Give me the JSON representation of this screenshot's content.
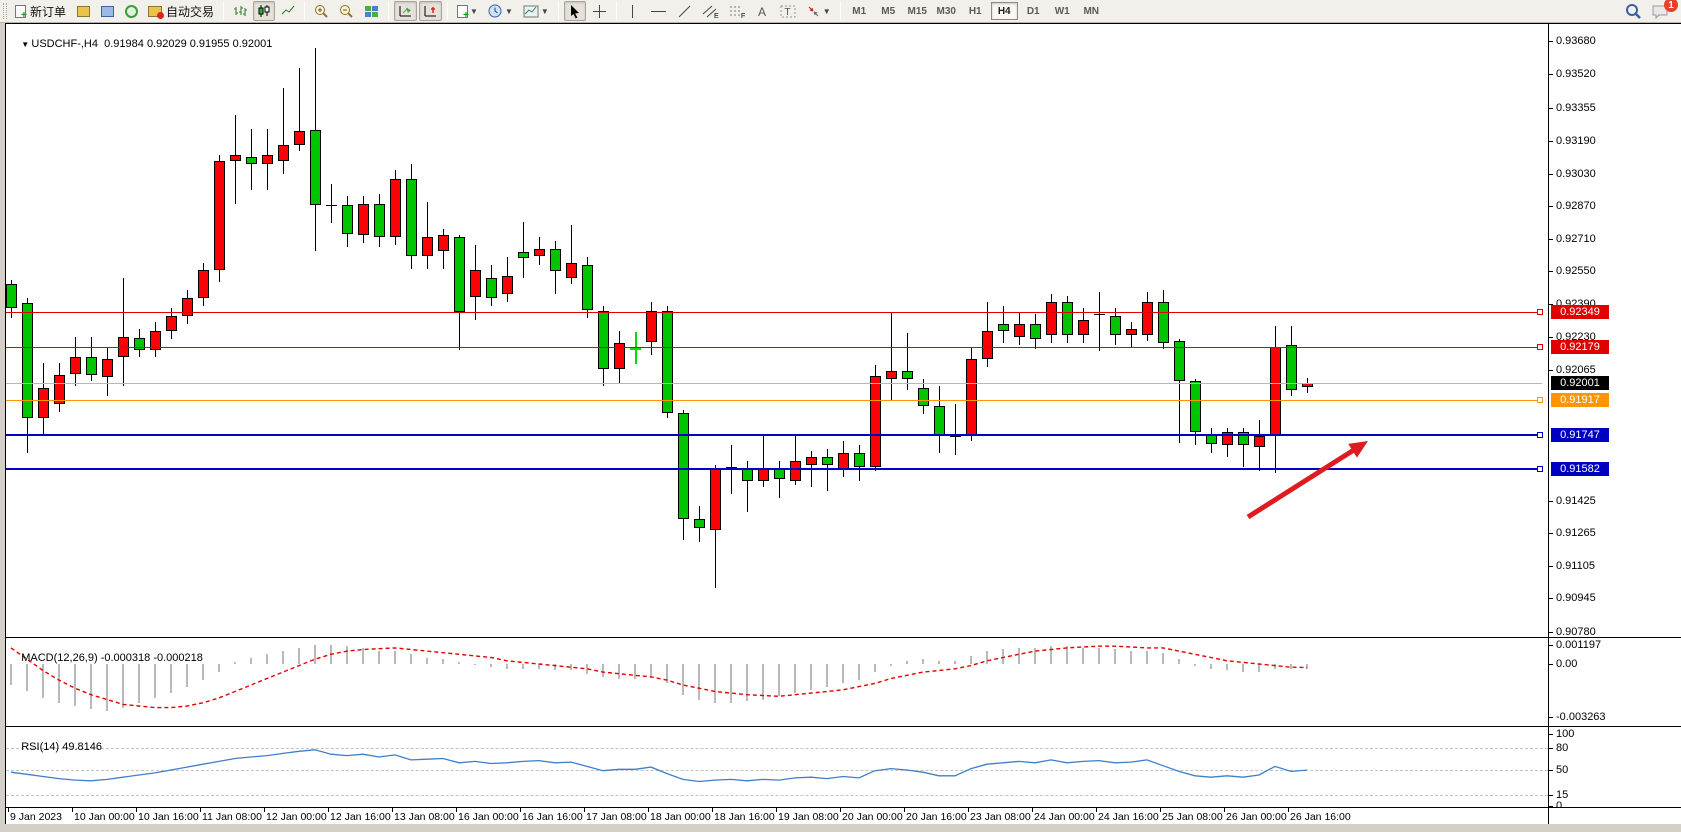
{
  "toolbar": {
    "new_order_label": "新订单",
    "auto_trading_label": "自动交易",
    "timeframes": [
      {
        "label": "M1",
        "active": false
      },
      {
        "label": "M5",
        "active": false
      },
      {
        "label": "M15",
        "active": false
      },
      {
        "label": "M30",
        "active": false
      },
      {
        "label": "H1",
        "active": false
      },
      {
        "label": "H4",
        "active": true
      },
      {
        "label": "D1",
        "active": false
      },
      {
        "label": "W1",
        "active": false
      },
      {
        "label": "MN",
        "active": false
      }
    ],
    "notification_count": "1"
  },
  "chart": {
    "title_symbol": "USDCHF-,H4",
    "title_ohlc": "0.91984 0.92029 0.91955 0.92001"
  },
  "chart_data": {
    "type": "candlestick",
    "symbol": "USDCHF-",
    "timeframe": "H4",
    "ohlc_display": {
      "open": "0.91984",
      "high": "0.92029",
      "low": "0.91955",
      "close": "0.92001"
    },
    "colors": {
      "up": "#fb0207",
      "down": "#00c400",
      "wick": "#000000",
      "macd_bar": "#b9b9b9",
      "macd_signal": "#e00000",
      "rsi_line": "#3f7fca",
      "arrow": "#de1b20",
      "line_red": "#e00000",
      "line_orange": "#ff9500",
      "line_blue": "#0000c0",
      "current": "#b8b8b8"
    },
    "price_axis_ticks": [
      "0.93680",
      "0.93520",
      "0.93355",
      "0.93190",
      "0.93030",
      "0.92870",
      "0.92710",
      "0.92550",
      "0.92390",
      "0.92230",
      "0.92065",
      "0.91425",
      "0.91265",
      "0.91105",
      "0.90945",
      "0.90780"
    ],
    "time_axis_labels": [
      "9 Jan 2023",
      "10 Jan 00:00",
      "10 Jan 16:00",
      "11 Jan 08:00",
      "12 Jan 00:00",
      "12 Jan 16:00",
      "13 Jan 08:00",
      "16 Jan 00:00",
      "16 Jan 16:00",
      "17 Jan 08:00",
      "18 Jan 00:00",
      "18 Jan 16:00",
      "19 Jan 08:00",
      "20 Jan 00:00",
      "20 Jan 16:00",
      "23 Jan 08:00",
      "24 Jan 00:00",
      "24 Jan 16:00",
      "25 Jan 08:00",
      "26 Jan 00:00",
      "26 Jan 16:00"
    ],
    "hlines": [
      {
        "price": 0.92349,
        "label": "0.92349",
        "color": "#e00000",
        "width": 1
      },
      {
        "price": 0.92179,
        "label": "0.92179",
        "color": "#e00000",
        "width": 1
      },
      {
        "price": 0.91917,
        "label": "0.91917",
        "color": "#ff9500",
        "width": 1
      },
      {
        "price": 0.91747,
        "label": "0.91747",
        "color": "#0000c0",
        "width": 2
      },
      {
        "price": 0.91582,
        "label": "0.91582",
        "color": "#0000c0",
        "width": 2
      }
    ],
    "current_price": {
      "value": 0.92001,
      "label": "0.92001"
    },
    "candles": [
      [
        0.9249,
        0.9251,
        0.9232,
        0.9237
      ],
      [
        0.92395,
        0.9242,
        0.91659,
        0.91831
      ],
      [
        0.91831,
        0.921,
        0.9174,
        0.9198
      ],
      [
        0.919,
        0.921,
        0.9186,
        0.9204
      ],
      [
        0.92045,
        0.9223,
        0.9199,
        0.9213
      ],
      [
        0.9213,
        0.9223,
        0.9201,
        0.9204
      ],
      [
        0.9203,
        0.9218,
        0.9194,
        0.9212
      ],
      [
        0.9213,
        0.9252,
        0.9199,
        0.9223
      ],
      [
        0.92225,
        0.9227,
        0.9213,
        0.92165
      ],
      [
        0.92165,
        0.923,
        0.9213,
        0.9226
      ],
      [
        0.9226,
        0.9237,
        0.9222,
        0.9233
      ],
      [
        0.9233,
        0.9246,
        0.9229,
        0.9242
      ],
      [
        0.9242,
        0.9259,
        0.9238,
        0.92557
      ],
      [
        0.92557,
        0.9312,
        0.925,
        0.9309
      ],
      [
        0.9309,
        0.9332,
        0.9288,
        0.9312
      ],
      [
        0.9311,
        0.9325,
        0.9295,
        0.9308
      ],
      [
        0.9308,
        0.9325,
        0.9295,
        0.9312
      ],
      [
        0.9309,
        0.9345,
        0.9303,
        0.9317
      ],
      [
        0.9317,
        0.9355,
        0.9314,
        0.9324
      ],
      [
        0.93245,
        0.93645,
        0.9265,
        0.92875
      ],
      [
        0.9288,
        0.9298,
        0.9279,
        0.92875,
        "x"
      ],
      [
        0.92875,
        0.9292,
        0.9267,
        0.92735
      ],
      [
        0.9273,
        0.9292,
        0.9269,
        0.9288
      ],
      [
        0.9288,
        0.9293,
        0.9267,
        0.9272
      ],
      [
        0.9272,
        0.9305,
        0.9268,
        0.93005
      ],
      [
        0.93005,
        0.9308,
        0.9256,
        0.92625
      ],
      [
        0.92625,
        0.9289,
        0.9256,
        0.9272
      ],
      [
        0.9265,
        0.9276,
        0.9256,
        0.9273
      ],
      [
        0.9272,
        0.9273,
        0.92165,
        0.9235
      ],
      [
        0.92425,
        0.9268,
        0.9231,
        0.92555
      ],
      [
        0.9252,
        0.9258,
        0.9238,
        0.9242
      ],
      [
        0.9244,
        0.9262,
        0.924,
        0.9253
      ],
      [
        0.92645,
        0.92795,
        0.9252,
        0.92615
      ],
      [
        0.92625,
        0.9272,
        0.9258,
        0.9266
      ],
      [
        0.9266,
        0.927,
        0.9244,
        0.9255
      ],
      [
        0.9252,
        0.9278,
        0.9249,
        0.9259
      ],
      [
        0.9258,
        0.9262,
        0.9232,
        0.9236
      ],
      [
        0.92355,
        0.9238,
        0.9199,
        0.9207
      ],
      [
        0.9207,
        0.9226,
        0.92,
        0.922
      ],
      [
        0.92175,
        0.92255,
        0.92095,
        0.92175,
        "g"
      ],
      [
        0.92205,
        0.924,
        0.9214,
        0.92355
      ],
      [
        0.92355,
        0.9238,
        0.9183,
        0.91855
      ],
      [
        0.91855,
        0.9187,
        0.9123,
        0.91335
      ],
      [
        0.91335,
        0.914,
        0.9122,
        0.9129
      ],
      [
        0.9128,
        0.916,
        0.90996,
        0.9158
      ],
      [
        0.9159,
        0.917,
        0.9146,
        0.9159,
        "x"
      ],
      [
        0.9158,
        0.9162,
        0.9137,
        0.9152
      ],
      [
        0.9152,
        0.9174,
        0.9149,
        0.9158
      ],
      [
        0.9158,
        0.9162,
        0.9144,
        0.9153
      ],
      [
        0.9152,
        0.9174,
        0.915,
        0.9162
      ],
      [
        0.916,
        0.9167,
        0.9149,
        0.9164
      ],
      [
        0.9164,
        0.9168,
        0.9147,
        0.916
      ],
      [
        0.9158,
        0.9172,
        0.9154,
        0.9166
      ],
      [
        0.9166,
        0.917,
        0.9152,
        0.9159
      ],
      [
        0.9159,
        0.9209,
        0.9157,
        0.92035
      ],
      [
        0.9202,
        0.9235,
        0.9192,
        0.9206
      ],
      [
        0.9206,
        0.9225,
        0.9197,
        0.9202
      ],
      [
        0.9198,
        0.9202,
        0.9185,
        0.9189
      ],
      [
        0.9189,
        0.9199,
        0.9166,
        0.9174
      ],
      [
        0.9174,
        0.919,
        0.9165,
        0.9174,
        "x"
      ],
      [
        0.9174,
        0.9218,
        0.9172,
        0.9212
      ],
      [
        0.9212,
        0.924,
        0.9208,
        0.9226
      ],
      [
        0.9229,
        0.9238,
        0.922,
        0.9226
      ],
      [
        0.9223,
        0.9235,
        0.9219,
        0.9229
      ],
      [
        0.9229,
        0.9234,
        0.9217,
        0.9222
      ],
      [
        0.9224,
        0.9244,
        0.922,
        0.924
      ],
      [
        0.924,
        0.9243,
        0.922,
        0.9224
      ],
      [
        0.9224,
        0.9237,
        0.922,
        0.9231
      ],
      [
        0.9233,
        0.9245,
        0.9216,
        0.9234,
        "x"
      ],
      [
        0.9233,
        0.9237,
        0.9219,
        0.9224
      ],
      [
        0.9224,
        0.923,
        0.9218,
        0.9227
      ],
      [
        0.9224,
        0.9245,
        0.9221,
        0.924
      ],
      [
        0.924,
        0.9246,
        0.9217,
        0.922
      ],
      [
        0.9221,
        0.9222,
        0.9171,
        0.9201
      ],
      [
        0.9201,
        0.9202,
        0.917,
        0.9176
      ],
      [
        0.9175,
        0.9178,
        0.9166,
        0.91705
      ],
      [
        0.917,
        0.9178,
        0.9164,
        0.9176
      ],
      [
        0.9176,
        0.9178,
        0.9159,
        0.917
      ],
      [
        0.9169,
        0.9182,
        0.9157,
        0.9174
      ],
      [
        0.9174,
        0.9228,
        0.9156,
        0.9218
      ],
      [
        0.9219,
        0.9228,
        0.9194,
        0.9197
      ],
      [
        0.91984,
        0.92029,
        0.91955,
        0.92001
      ]
    ],
    "macd": {
      "label": "MACD(12,26,9)",
      "values_label": "-0.000318 -0.000218",
      "axis_ticks": [
        {
          "v": 0.001197,
          "label": "0.001197"
        },
        {
          "v": 0.0,
          "label": "0.00"
        },
        {
          "v": -0.003263,
          "label": "-0.003263"
        }
      ],
      "histogram": [
        -0.0013,
        -0.0017,
        -0.0021,
        -0.0024,
        -0.0026,
        -0.0028,
        -0.0029,
        -0.0027,
        -0.0024,
        -0.0021,
        -0.0018,
        -0.0014,
        -0.001,
        -0.0005,
        0.0001,
        0.0004,
        0.0006,
        0.0008,
        0.001,
        0.0012,
        0.0012,
        0.0011,
        0.001,
        0.0008,
        0.0008,
        0.0006,
        0.0004,
        0.0003,
        0.0001,
        0.0,
        -0.0002,
        -0.0003,
        -0.0003,
        -0.0003,
        -0.0004,
        -0.0004,
        -0.0006,
        -0.0008,
        -0.0009,
        -0.0009,
        -0.0008,
        -0.0012,
        -0.0019,
        -0.0022,
        -0.0024,
        -0.0024,
        -0.0023,
        -0.0022,
        -0.002,
        -0.0018,
        -0.0016,
        -0.0014,
        -0.0012,
        -0.001,
        -0.0005,
        -0.0001,
        0.0002,
        0.0003,
        0.0002,
        0.0002,
        0.0005,
        0.0008,
        0.0009,
        0.001,
        0.001,
        0.0011,
        0.0011,
        0.001,
        0.001,
        0.0009,
        0.0008,
        0.0008,
        0.0007,
        0.0003,
        -0.0001,
        -0.0003,
        -0.0004,
        -0.0005,
        -0.0005,
        -0.0003,
        -0.0003,
        -0.000318
      ],
      "signal": [
        0.001,
        0.0003,
        -0.0004,
        -0.001,
        -0.0015,
        -0.0019,
        -0.0022,
        -0.0025,
        -0.0026,
        -0.0027,
        -0.0027,
        -0.0026,
        -0.0024,
        -0.0021,
        -0.0017,
        -0.0013,
        -0.0009,
        -0.0005,
        -0.0001,
        0.0003,
        0.0006,
        0.0008,
        0.0009,
        0.00095,
        0.001,
        0.0009,
        0.0008,
        0.0007,
        0.0006,
        0.0005,
        0.0004,
        0.0002,
        0.0001,
        0.0,
        -0.0001,
        -0.0002,
        -0.0003,
        -0.0005,
        -0.0006,
        -0.0007,
        -0.0008,
        -0.001,
        -0.0013,
        -0.0015,
        -0.0017,
        -0.0018,
        -0.0019,
        -0.00195,
        -0.002,
        -0.0019,
        -0.0018,
        -0.0017,
        -0.0016,
        -0.0014,
        -0.0012,
        -0.0009,
        -0.0007,
        -0.0005,
        -0.0004,
        -0.0003,
        -0.0001,
        0.0002,
        0.0004,
        0.0006,
        0.0008,
        0.0009,
        0.001,
        0.00105,
        0.0011,
        0.0011,
        0.00105,
        0.001,
        0.001,
        0.0008,
        0.0006,
        0.0004,
        0.0002,
        0.0001,
        0.0,
        -0.0001,
        -0.0002,
        -0.000218
      ]
    },
    "rsi": {
      "label": "RSI(14)",
      "value_label": "49.8146",
      "axis_ticks": [
        {
          "v": 100,
          "label": "100"
        },
        {
          "v": 80,
          "label": "80"
        },
        {
          "v": 50,
          "label": "50"
        },
        {
          "v": 15,
          "label": "15"
        },
        {
          "v": 0,
          "label": "0"
        }
      ],
      "levels": [
        80,
        50,
        15
      ],
      "values": [
        47,
        44,
        41,
        38,
        36,
        35,
        37,
        40,
        43,
        46,
        50,
        54,
        58,
        62,
        66,
        68,
        70,
        73,
        76,
        78,
        72,
        70,
        72,
        68,
        71,
        64,
        65,
        66,
        60,
        62,
        59,
        60,
        62,
        63,
        60,
        61,
        55,
        49,
        51,
        51,
        54,
        45,
        37,
        34,
        36,
        37,
        35,
        37,
        36,
        39,
        40,
        38,
        41,
        39,
        49,
        52,
        50,
        47,
        42,
        42,
        52,
        58,
        60,
        62,
        60,
        64,
        60,
        62,
        63,
        60,
        61,
        64,
        56,
        48,
        42,
        40,
        42,
        40,
        43,
        55,
        48,
        49.8146
      ]
    },
    "annotation_arrow": {
      "from": [
        1248,
        517
      ],
      "to": [
        1368,
        441
      ],
      "color": "#de1b20"
    }
  }
}
